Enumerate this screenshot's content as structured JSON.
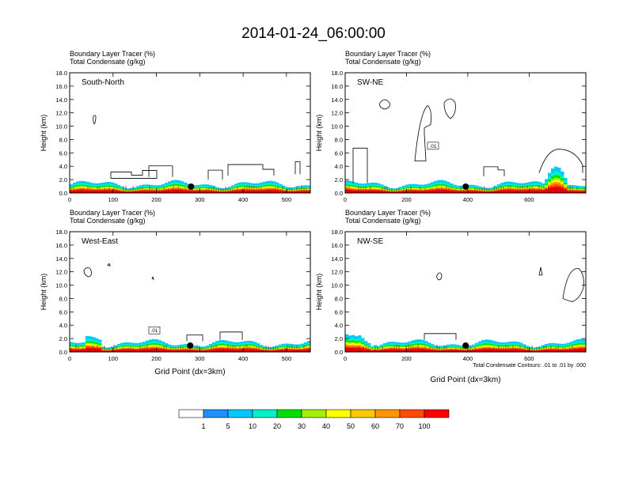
{
  "title": "2014-01-24_06:00:00",
  "footer_note": "Total Condensate Contours: .01 to .01 by .000",
  "colorbar": {
    "labels": [
      "1",
      "5",
      "10",
      "20",
      "30",
      "40",
      "50",
      "60",
      "70",
      "100"
    ],
    "colors": [
      "#ffffff",
      "#1e90ff",
      "#00c8ff",
      "#00f0c8",
      "#00e000",
      "#a0f000",
      "#ffff00",
      "#ffc800",
      "#ff9600",
      "#ff4b00",
      "#ff0000"
    ]
  },
  "chart_data": [
    {
      "type": "contour",
      "panel": "South-North",
      "header": [
        "Boundary Layer Tracer   (%)",
        "Total Condensate   (g/kg)"
      ],
      "ylabel": "Height (km)",
      "xlabel": "",
      "xlim": [
        0,
        555
      ],
      "ylim": [
        0,
        18
      ],
      "xticks": [
        0,
        100,
        200,
        300,
        400,
        500
      ],
      "yticks": [
        "0.0",
        "2.0",
        "4.0",
        "6.0",
        "8.0",
        "10.0",
        "12.0",
        "14.0",
        "16.0",
        "18.0"
      ],
      "marker_x": 280,
      "contour_label": ""
    },
    {
      "type": "contour",
      "panel": "SW-NE",
      "header": [
        "Boundary Layer Tracer   (%)",
        "Total Condensate   (g/kg)"
      ],
      "ylabel": "Height (km)",
      "xlabel": "",
      "xlim": [
        0,
        785
      ],
      "ylim": [
        0,
        18
      ],
      "xticks": [
        0,
        200,
        400,
        600
      ],
      "yticks": [
        "0.0",
        "2.0",
        "4.0",
        "6.0",
        "8.0",
        "10.0",
        "12.0",
        "14.0",
        "16.0",
        "18.0"
      ],
      "marker_x": 393,
      "contour_label": ".01"
    },
    {
      "type": "contour",
      "panel": "West-East",
      "header": [
        "Boundary Layer Tracer   (%)",
        "Total Condensate   (g/kg)"
      ],
      "ylabel": "Height (km)",
      "xlabel": "Grid Point (dx=3km)",
      "xlim": [
        0,
        555
      ],
      "ylim": [
        0,
        18
      ],
      "xticks": [
        0,
        100,
        200,
        300,
        400,
        500
      ],
      "yticks": [
        "0.0",
        "2.0",
        "4.0",
        "6.0",
        "8.0",
        "10.0",
        "12.0",
        "14.0",
        "16.0",
        "18.0"
      ],
      "marker_x": 278,
      "contour_label": ".01"
    },
    {
      "type": "contour",
      "panel": "NW-SE",
      "header": [
        "Boundary Layer Tracer   (%)",
        "Total Condensate   (g/kg)"
      ],
      "ylabel": "Height (km)",
      "xlabel": "Grid Point (dx=3km)",
      "xlim": [
        0,
        785
      ],
      "ylim": [
        0,
        18
      ],
      "xticks": [
        0,
        200,
        400,
        600
      ],
      "yticks": [
        "0.0",
        "2.0",
        "4.0",
        "6.0",
        "8.0",
        "10.0",
        "12.0",
        "14.0",
        "16.0",
        "18.0"
      ],
      "marker_x": 393,
      "contour_label": ""
    }
  ]
}
